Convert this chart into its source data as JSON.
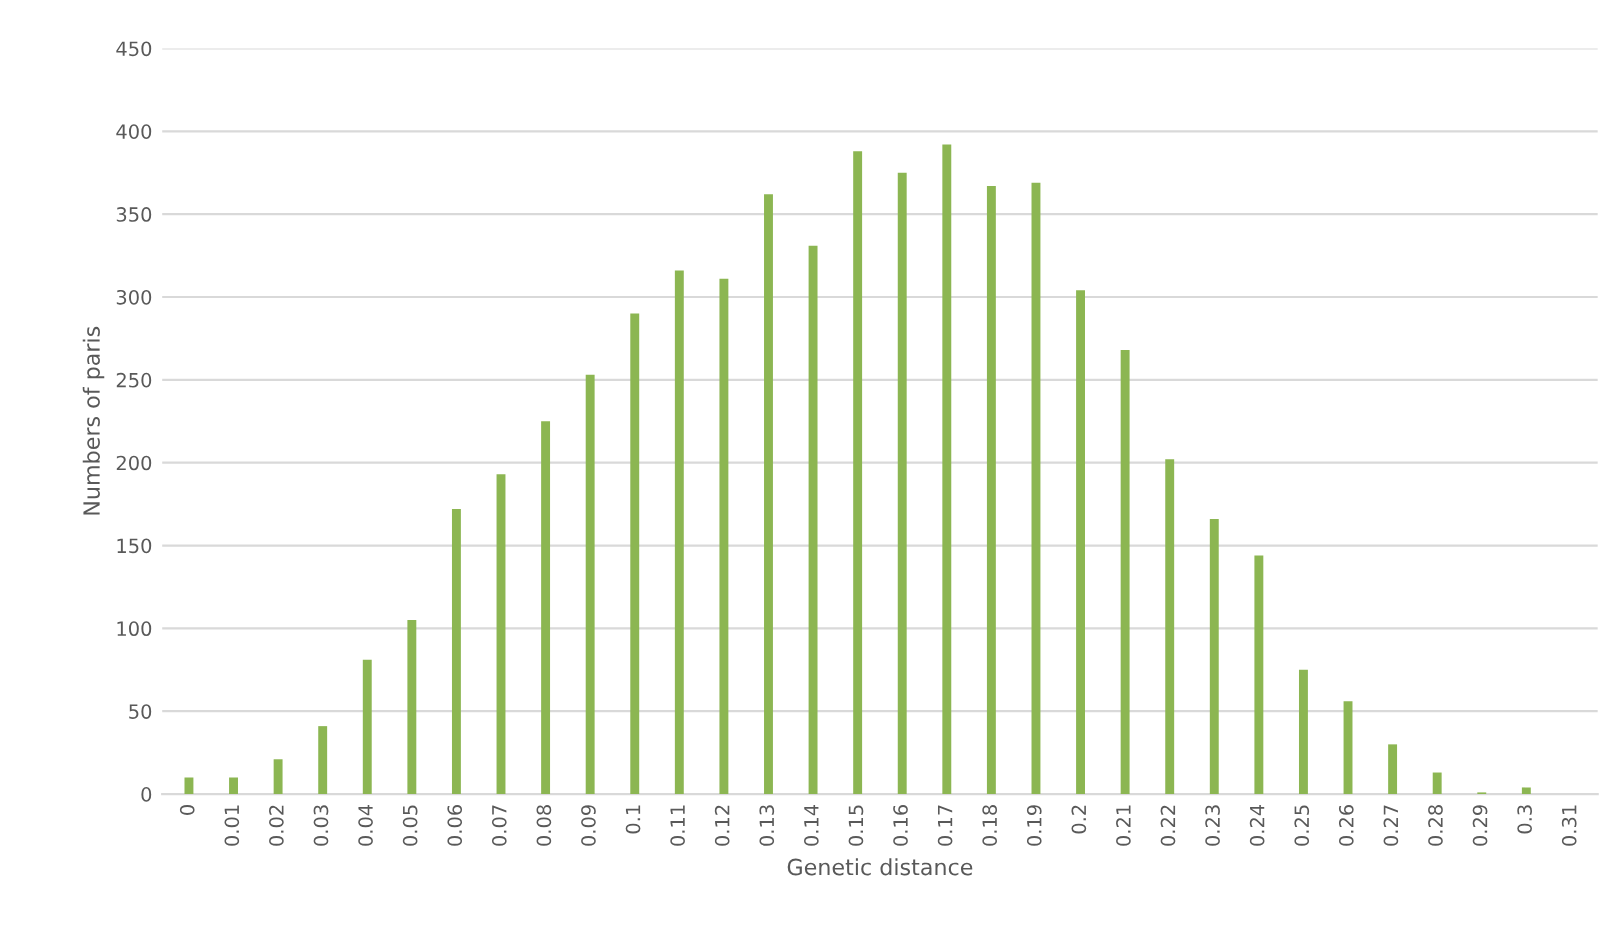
{
  "chart_data": {
    "type": "bar",
    "xlabel": "Genetic distance",
    "ylabel": "Numbers of paris",
    "categories": [
      "0",
      "0.01",
      "0.02",
      "0.03",
      "0.04",
      "0.05",
      "0.06",
      "0.07",
      "0.08",
      "0.09",
      "0.1",
      "0.11",
      "0.12",
      "0.13",
      "0.14",
      "0.15",
      "0.16",
      "0.17",
      "0.18",
      "0.19",
      "0.2",
      "0.21",
      "0.22",
      "0.23",
      "0.24",
      "0.25",
      "0.26",
      "0.27",
      "0.28",
      "0.29",
      "0.3",
      "0.31"
    ],
    "values": [
      10,
      10,
      21,
      41,
      81,
      105,
      172,
      193,
      225,
      253,
      290,
      316,
      311,
      362,
      331,
      388,
      375,
      392,
      367,
      369,
      304,
      268,
      202,
      166,
      144,
      75,
      56,
      30,
      13,
      1,
      4,
      0
    ],
    "color": "#8cb652",
    "ylim": [
      0,
      450
    ],
    "yticks": [
      0,
      50,
      100,
      150,
      200,
      250,
      300,
      350,
      400,
      450
    ],
    "grid": "y"
  }
}
